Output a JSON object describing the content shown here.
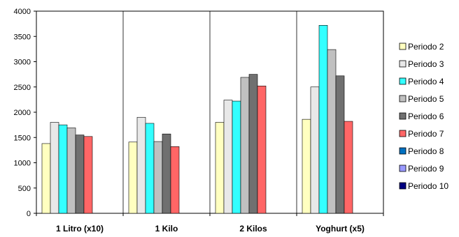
{
  "chart_data": {
    "type": "bar",
    "title": "",
    "xlabel": "",
    "ylabel": "",
    "ylim": [
      0,
      4000
    ],
    "yticks": [
      0,
      500,
      1000,
      1500,
      2000,
      2500,
      3000,
      3500,
      4000
    ],
    "grid": "vertical lines between categories",
    "legend_position": "right",
    "categories": [
      "1 Litro (x10)",
      "1 Kilo",
      "2 Kilos",
      "Yoghurt (x5)"
    ],
    "series": [
      {
        "name": "Periodo 2",
        "color": "#FFFFC0",
        "values": [
          1380,
          1410,
          1800,
          1860
        ]
      },
      {
        "name": "Periodo 3",
        "color": "#E8E8E8",
        "values": [
          1800,
          1900,
          2240,
          2500
        ]
      },
      {
        "name": "Periodo 4",
        "color": "#33FFFF",
        "values": [
          1750,
          1780,
          2220,
          3720
        ]
      },
      {
        "name": "Periodo 5",
        "color": "#C0C0C0",
        "values": [
          1690,
          1420,
          2690,
          3240
        ]
      },
      {
        "name": "Periodo 6",
        "color": "#707070",
        "values": [
          1550,
          1570,
          2750,
          2720
        ]
      },
      {
        "name": "Periodo 7",
        "color": "#FF6666",
        "values": [
          1520,
          1320,
          2520,
          1820
        ]
      },
      {
        "name": "Periodo 8",
        "color": "#0070C0",
        "values": [
          null,
          null,
          null,
          null
        ]
      },
      {
        "name": "Periodo 9",
        "color": "#9999FF",
        "values": [
          null,
          null,
          null,
          null
        ]
      },
      {
        "name": "Periodo 10",
        "color": "#000080",
        "values": [
          null,
          null,
          null,
          null
        ]
      }
    ]
  }
}
